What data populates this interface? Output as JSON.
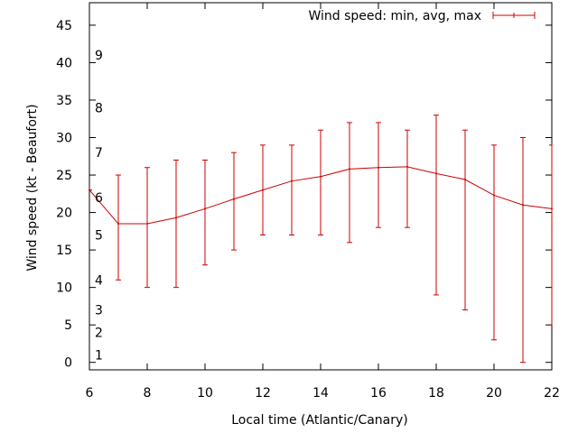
{
  "chart_data": {
    "type": "line",
    "title": "",
    "xlabel": "Local time (Atlantic/Canary)",
    "ylabel": "Wind speed (kt - Beaufort)",
    "xlim": [
      6,
      22
    ],
    "ylim": [
      -1,
      48
    ],
    "x_ticks": [
      6,
      8,
      10,
      12,
      14,
      16,
      18,
      20,
      22
    ],
    "y_ticks": [
      0,
      5,
      10,
      15,
      20,
      25,
      30,
      35,
      40,
      45
    ],
    "beaufort_labels": [
      {
        "label": "1",
        "y": 1
      },
      {
        "label": "2",
        "y": 4
      },
      {
        "label": "3",
        "y": 7
      },
      {
        "label": "4",
        "y": 11
      },
      {
        "label": "5",
        "y": 17
      },
      {
        "label": "6",
        "y": 22
      },
      {
        "label": "7",
        "y": 28
      },
      {
        "label": "8",
        "y": 34
      },
      {
        "label": "9",
        "y": 41
      }
    ],
    "legend": {
      "label": "Wind speed: min, avg, max",
      "position": "top-right"
    },
    "color": "#cc0000",
    "series": [
      {
        "name": "Wind speed: min, avg, max",
        "x": [
          6,
          7,
          8,
          9,
          10,
          11,
          12,
          13,
          14,
          15,
          16,
          17,
          18,
          19,
          20,
          21,
          22
        ],
        "y": [
          23,
          18.5,
          18.5,
          19.3,
          20.5,
          21.8,
          23,
          24.2,
          24.8,
          25.8,
          26,
          26.1,
          25.2,
          24.4,
          22.3,
          21,
          20.5
        ],
        "min": [
          23,
          11,
          10,
          10,
          13,
          15,
          17,
          17,
          17,
          16,
          18,
          18,
          9,
          7,
          3,
          0,
          5
        ],
        "max": [
          23,
          25,
          26,
          27,
          27,
          28,
          29,
          29,
          31,
          32,
          32,
          31,
          33,
          31,
          29,
          30,
          29
        ]
      }
    ]
  }
}
